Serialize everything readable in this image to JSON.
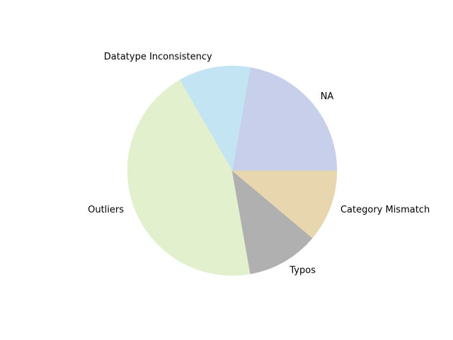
{
  "chart_data": {
    "type": "pie",
    "title": "",
    "slices": [
      {
        "label": "NA",
        "value": 2,
        "color": "#c7cfea"
      },
      {
        "label": "Datatype Inconsistency",
        "value": 1,
        "color": "#c2e4f3"
      },
      {
        "label": "Outliers",
        "value": 4,
        "color": "#e2f0cd"
      },
      {
        "label": "Typos",
        "value": 1,
        "color": "#b0b0b0"
      },
      {
        "label": "Category Mismatch",
        "value": 1,
        "color": "#e8d7ae"
      }
    ],
    "start_angle_deg": 0,
    "direction": "counterclockwise",
    "legend": "none"
  }
}
